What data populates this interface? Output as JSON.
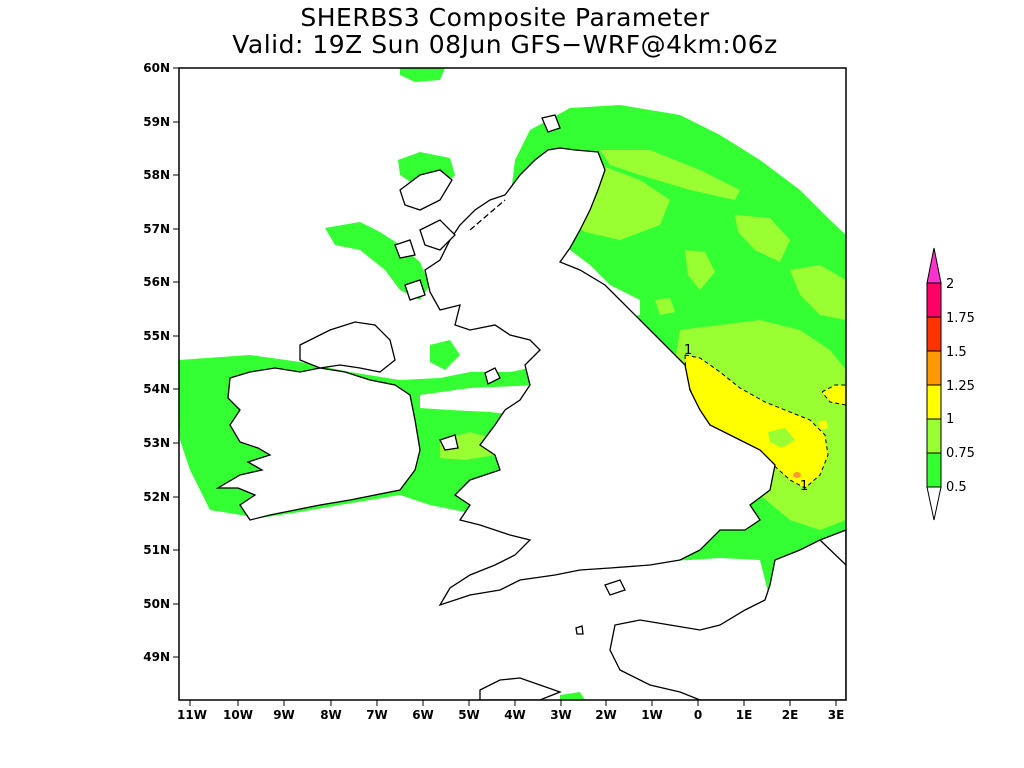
{
  "title": {
    "line1": "SHERBS3 Composite Parameter",
    "line2": "Valid: 19Z Sun 08Jun GFS−WRF@4km:06z"
  },
  "map": {
    "lat_labels": [
      "60N",
      "59N",
      "58N",
      "57N",
      "56N",
      "55N",
      "54N",
      "53N",
      "52N",
      "51N",
      "50N",
      "49N"
    ],
    "lon_labels": [
      "11W",
      "10W",
      "9W",
      "8W",
      "7W",
      "6W",
      "5W",
      "4W",
      "3W",
      "2W",
      "1W",
      "0",
      "1E",
      "2E",
      "3E"
    ],
    "contour_labels": [
      "1",
      "1"
    ],
    "fill_colors": {
      "green_0_5": "#33ff33",
      "light_green_0_75": "#99ff33",
      "yellow_1": "#ffff00",
      "orange_1_25": "#ff9933"
    }
  },
  "colorbar": {
    "labels": [
      "0.5",
      "0.75",
      "1",
      "1.25",
      "1.5",
      "1.75",
      "2"
    ],
    "colors": [
      "#33ff33",
      "#99ff33",
      "#ffff00",
      "#ff9900",
      "#ff3300",
      "#ff0066",
      "#ff33cc"
    ],
    "under_color": "#ffffff"
  }
}
